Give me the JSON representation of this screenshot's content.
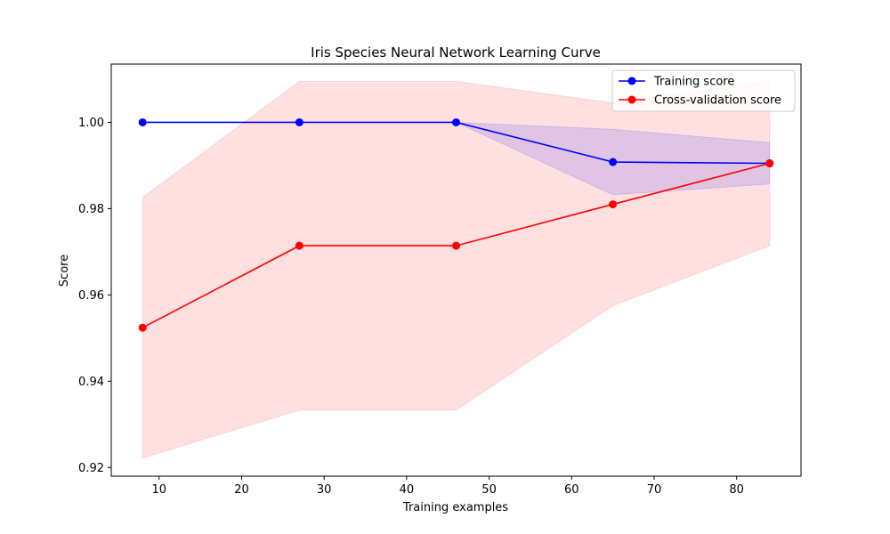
{
  "chart_data": {
    "type": "line",
    "title": "Iris Species Neural Network Learning Curve",
    "xlabel": "Training examples",
    "ylabel": "Score",
    "xlim": [
      4.2,
      87.8
    ],
    "ylim": [
      0.918,
      1.0135
    ],
    "x_ticks": [
      10,
      20,
      30,
      40,
      50,
      60,
      70,
      80
    ],
    "x_tick_labels": [
      "10",
      "20",
      "30",
      "40",
      "50",
      "60",
      "70",
      "80"
    ],
    "y_ticks": [
      0.92,
      0.94,
      0.96,
      0.98,
      1.0
    ],
    "y_tick_labels": [
      "0.92",
      "0.94",
      "0.96",
      "0.98",
      "1.00"
    ],
    "grid": false,
    "legend_position": "top-right",
    "x": [
      8,
      27,
      46,
      65,
      84
    ],
    "series": [
      {
        "name": "Training score",
        "color": "#0000ff",
        "marker": "circle",
        "values": [
          1.0,
          1.0,
          1.0,
          0.9908,
          0.9905
        ],
        "band_lower": [
          1.0,
          1.0,
          1.0,
          0.9832,
          0.9857
        ],
        "band_upper": [
          1.0,
          1.0,
          1.0,
          0.9984,
          0.9953
        ],
        "band_color": "#0000ff"
      },
      {
        "name": "Cross-validation score",
        "color": "#ff0000",
        "marker": "circle",
        "values": [
          0.9524,
          0.9714,
          0.9714,
          0.981,
          0.9905
        ],
        "band_lower": [
          0.9222,
          0.9333,
          0.9333,
          0.9575,
          0.9714
        ],
        "band_upper": [
          0.9826,
          1.0095,
          1.0095,
          1.0045,
          1.0096
        ],
        "band_color": "#ff0000"
      }
    ]
  }
}
